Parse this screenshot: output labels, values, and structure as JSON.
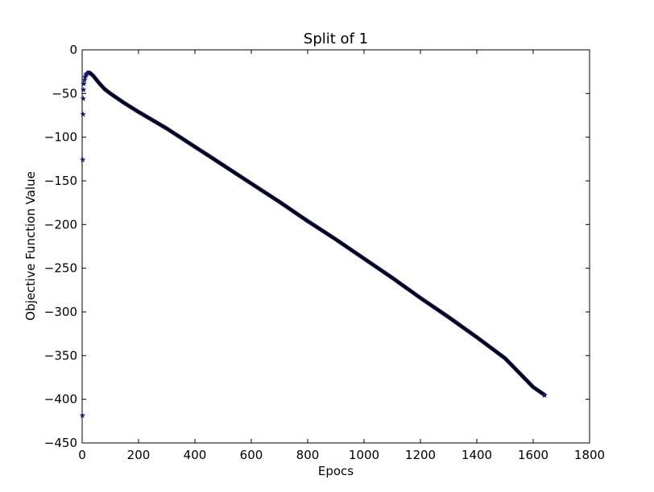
{
  "chart_data": {
    "type": "line",
    "title": "Split of 1",
    "xlabel": "Epocs",
    "ylabel": "Objective Function Value",
    "xlim": [
      0,
      1800
    ],
    "ylim": [
      -450,
      0
    ],
    "xticks": [
      0,
      200,
      400,
      600,
      800,
      1000,
      1200,
      1400,
      1600,
      1800
    ],
    "yticks": [
      0,
      -50,
      -100,
      -150,
      -200,
      -250,
      -300,
      -350,
      -400,
      -450
    ],
    "xtick_labels": [
      "0",
      "200",
      "400",
      "600",
      "800",
      "1000",
      "1200",
      "1400",
      "1600",
      "1800"
    ],
    "ytick_labels": [
      "0",
      "−50",
      "−100",
      "−150",
      "−200",
      "−250",
      "−300",
      "−350",
      "−400",
      "−450"
    ],
    "grid": false,
    "series": [
      {
        "color": "#1a1a6e",
        "marker": "star",
        "x": [
          1,
          2,
          3,
          4,
          5,
          6,
          8,
          10,
          12,
          15,
          18,
          21,
          25,
          30,
          40,
          50,
          60,
          80,
          100,
          150,
          200,
          300,
          400,
          500,
          600,
          700,
          800,
          900,
          1000,
          1100,
          1200,
          1300,
          1400,
          1500,
          1600,
          1640
        ],
        "y": [
          -418,
          -125,
          -73,
          -55,
          -45,
          -38,
          -34,
          -31,
          -29,
          -27,
          -26,
          -26,
          -26,
          -27,
          -30,
          -34,
          -38,
          -45,
          -50,
          -61,
          -71,
          -90,
          -111,
          -132,
          -153,
          -174,
          -196,
          -217,
          -239,
          -261,
          -284,
          -306,
          -329,
          -353,
          -386,
          -395
        ]
      }
    ]
  }
}
